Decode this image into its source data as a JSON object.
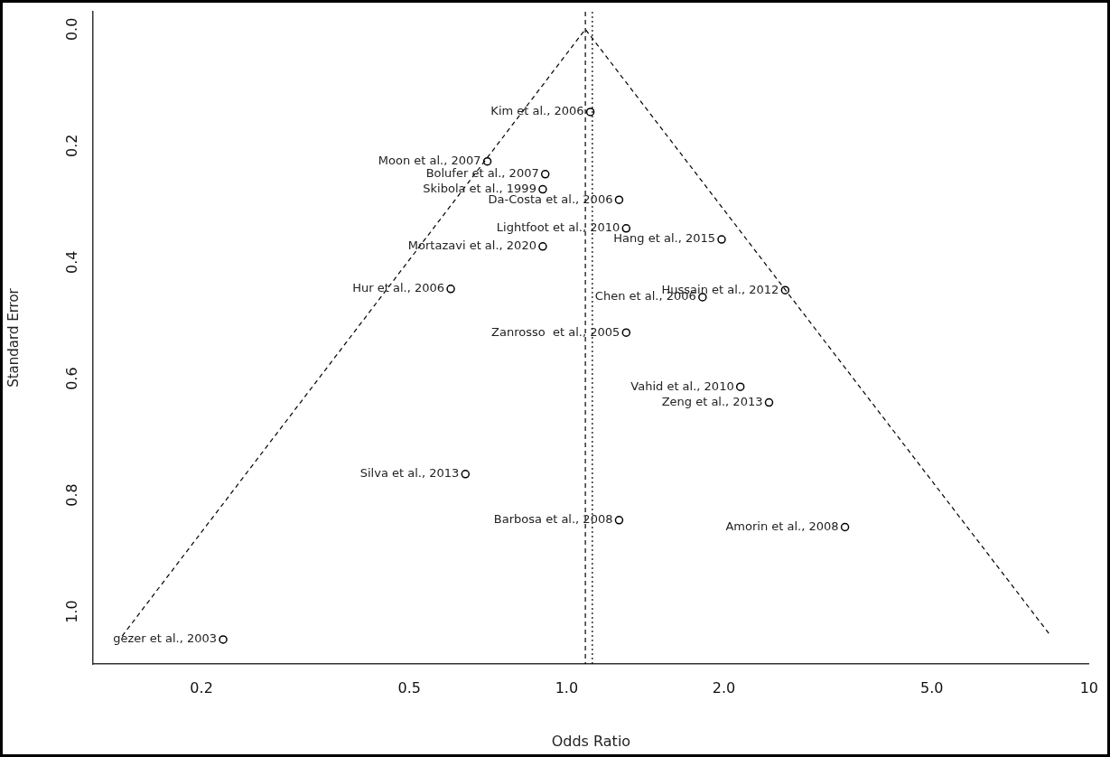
{
  "chart_data": {
    "type": "scatter",
    "xlabel": "Odds Ratio",
    "ylabel": "Standard Error",
    "log": "x",
    "marker": "circle",
    "xlim": [
      0.124,
      10
    ],
    "ylim": [
      1.09,
      -0.03
    ],
    "xticks": [
      0.2,
      0.5,
      {
        "value": 1,
        "label": "1.0"
      },
      {
        "value": 2,
        "label": "2.0"
      },
      {
        "value": 5,
        "label": "5.0"
      },
      10
    ],
    "yticks": [
      {
        "value": 0,
        "label": "0.0"
      },
      0.2,
      0.4,
      0.6,
      0.8,
      {
        "value": 1,
        "label": "1.0"
      }
    ],
    "series": [
      {
        "type": "scatter",
        "color": "#000000",
        "x": [
          1.11,
          0.705,
          0.91,
          0.9,
          1.26,
          1.3,
          0.9,
          1.98,
          0.6,
          2.62,
          1.82,
          1.3,
          2.15,
          2.44,
          0.64,
          1.26,
          3.41,
          0.22
        ],
        "values": [
          0.142,
          0.227,
          0.249,
          0.275,
          0.293,
          0.342,
          0.373,
          0.361,
          0.446,
          0.448,
          0.46,
          0.521,
          0.614,
          0.641,
          0.764,
          0.843,
          0.855,
          1.048
        ]
      },
      {
        "type": "line",
        "color": "#000000",
        "line_style": "dashed",
        "marker": "none",
        "x": [
          0.141,
          1.086,
          8.45
        ],
        "values": [
          1.042,
          0,
          1.042
        ]
      }
    ],
    "ref_lines": [
      {
        "axis": "x",
        "value": 1.086,
        "color": "#000000",
        "line_style": "dashed"
      },
      {
        "axis": "x",
        "value": 1.12,
        "color": "#000000",
        "line_style": "dotted"
      }
    ],
    "annotations": [
      {
        "text": "Kim et al., 2006",
        "x": 1.11,
        "y": 0.142
      },
      {
        "text": "Moon et al., 2007",
        "x": 0.705,
        "y": 0.227
      },
      {
        "text": "Bolufer et al., 2007",
        "x": 0.91,
        "y": 0.249
      },
      {
        "text": "Skibola et al., 1999",
        "x": 0.9,
        "y": 0.275
      },
      {
        "text": "Da-Costa et al., 2006",
        "x": 1.26,
        "y": 0.293
      },
      {
        "text": "Lightfoot et al., 2010",
        "x": 1.3,
        "y": 0.342
      },
      {
        "text": "Mortazavi et al., 2020",
        "x": 0.9,
        "y": 0.373
      },
      {
        "text": "Hang et al., 2015",
        "x": 1.98,
        "y": 0.361
      },
      {
        "text": "Hur et al., 2006",
        "x": 0.6,
        "y": 0.446
      },
      {
        "text": "Hussain et al., 2012",
        "x": 2.62,
        "y": 0.448
      },
      {
        "text": "Chen et al., 2006",
        "x": 1.82,
        "y": 0.46
      },
      {
        "text": "Zanrosso  et al., 2005",
        "x": 1.3,
        "y": 0.521
      },
      {
        "text": "Vahid et al., 2010",
        "x": 2.15,
        "y": 0.614
      },
      {
        "text": "Zeng et al., 2013",
        "x": 2.44,
        "y": 0.641
      },
      {
        "text": "Silva et al., 2013",
        "x": 0.64,
        "y": 0.764
      },
      {
        "text": "Barbosa et al., 2008",
        "x": 1.26,
        "y": 0.843
      },
      {
        "text": "Amorin et al., 2008",
        "x": 3.41,
        "y": 0.855
      },
      {
        "text": "gezer et al., 2003",
        "x": 0.22,
        "y": 1.048
      }
    ]
  }
}
